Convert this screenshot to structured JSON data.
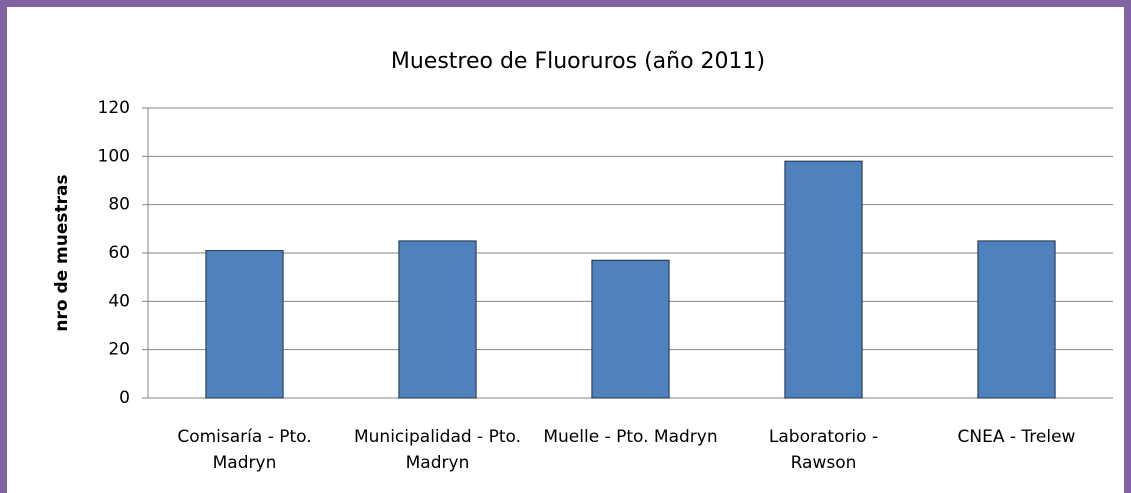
{
  "chart_data": {
    "type": "bar",
    "title": "Muestreo  de Fluoruros (año 2011)",
    "y_label": "nro de muestras",
    "categories": [
      "Comisaría - Pto. Madryn",
      "Municipalidad - Pto. Madryn",
      "Muelle - Pto. Madryn",
      "Laboratorio - Rawson",
      "CNEA - Trelew"
    ],
    "values": [
      61,
      65,
      57,
      98,
      65
    ],
    "color": "#4f81bd",
    "ylim": [
      0,
      120
    ],
    "yticks": [
      0,
      20,
      40,
      60,
      80,
      100,
      120
    ],
    "grid": true
  }
}
